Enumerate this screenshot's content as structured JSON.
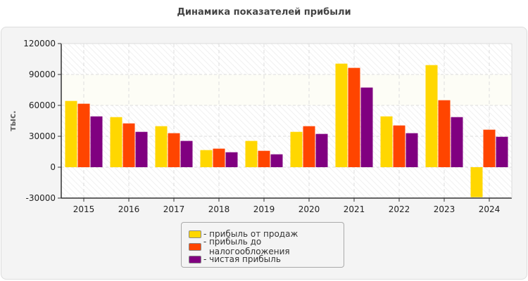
{
  "chart_data": {
    "type": "bar",
    "title": "Динамика показателей прибыли",
    "ylabel": "тыс.",
    "xlabel": "",
    "ylim": [
      -30000,
      120000
    ],
    "yticks": [
      -30000,
      0,
      30000,
      60000,
      90000,
      120000
    ],
    "grid": true,
    "legend_placement": "bottom",
    "legend_separator": "-",
    "categories": [
      "2015",
      "2016",
      "2017",
      "2018",
      "2019",
      "2020",
      "2021",
      "2022",
      "2023",
      "2024"
    ],
    "series": [
      {
        "name": "прибыль от продаж",
        "color": "#FFD700",
        "values": [
          64300,
          48600,
          39800,
          16600,
          25500,
          34300,
          100500,
          49300,
          99100,
          -29100
        ]
      },
      {
        "name": "прибыль до налогообложения",
        "color": "#FF4500",
        "values": [
          61600,
          42500,
          33000,
          18000,
          15900,
          39800,
          96400,
          40500,
          65000,
          36400
        ]
      },
      {
        "name": "чистая прибыль",
        "color": "#800080",
        "values": [
          49300,
          34300,
          25500,
          14500,
          12500,
          32300,
          77300,
          33000,
          48600,
          29500
        ]
      }
    ]
  }
}
